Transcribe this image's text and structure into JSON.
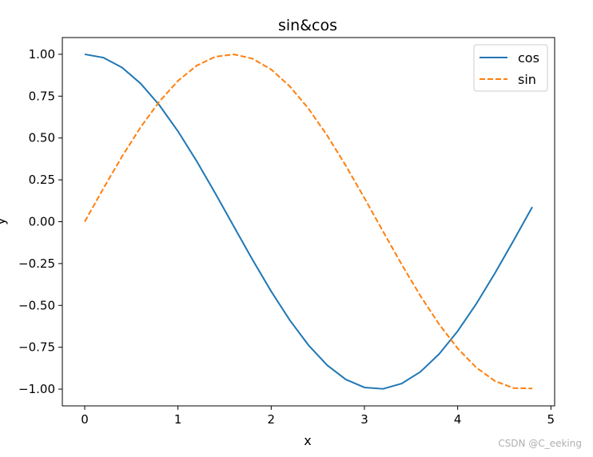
{
  "chart_data": {
    "type": "line",
    "title": "sin&cos",
    "xlabel": "x",
    "ylabel": "y",
    "xlim": [
      -0.24,
      5.04
    ],
    "ylim": [
      -1.1,
      1.1
    ],
    "xticks": [
      0,
      1,
      2,
      3,
      4,
      5
    ],
    "yticks": [
      1.0,
      0.75,
      0.5,
      0.25,
      0.0,
      -0.25,
      -0.5,
      -0.75,
      -1.0
    ],
    "xtick_labels": [
      "0",
      "1",
      "2",
      "3",
      "4",
      "5"
    ],
    "ytick_labels": [
      "1.00",
      "0.75",
      "0.50",
      "0.25",
      "0.00",
      "−0.25",
      "−0.50",
      "−0.75",
      "−1.00"
    ],
    "grid": false,
    "legend_position": "top-right",
    "x": [
      0,
      0.2,
      0.4,
      0.6,
      0.8,
      1.0,
      1.2,
      1.4,
      1.6,
      1.8,
      2.0,
      2.2,
      2.4,
      2.6,
      2.8,
      3.0,
      3.2,
      3.4,
      3.6,
      3.8,
      4.0,
      4.2,
      4.4,
      4.6,
      4.8
    ],
    "series": [
      {
        "name": "cos",
        "color": "#1f77b4",
        "style": "solid",
        "values": [
          1.0,
          0.9801,
          0.9211,
          0.8253,
          0.6967,
          0.5403,
          0.3624,
          0.17,
          -0.0292,
          -0.2272,
          -0.4161,
          -0.5885,
          -0.7374,
          -0.8569,
          -0.9422,
          -0.99,
          -0.9983,
          -0.9668,
          -0.8968,
          -0.791,
          -0.6536,
          -0.4903,
          -0.3073,
          -0.1122,
          0.0875
        ]
      },
      {
        "name": "sin",
        "color": "#ff7f0e",
        "style": "dashed",
        "values": [
          0.0,
          0.1987,
          0.3894,
          0.5646,
          0.7174,
          0.8415,
          0.932,
          0.9854,
          0.9996,
          0.9738,
          0.9093,
          0.8085,
          0.6755,
          0.5155,
          0.335,
          0.1411,
          -0.0584,
          -0.2555,
          -0.4425,
          -0.6119,
          -0.7568,
          -0.8716,
          -0.9516,
          -0.9937,
          -0.9962
        ]
      }
    ]
  },
  "watermark": "CSDN @C_eeking"
}
